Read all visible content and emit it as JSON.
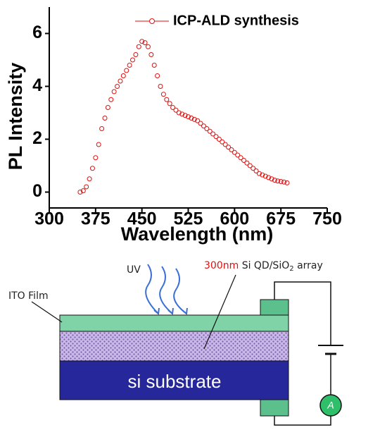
{
  "chart_data": {
    "type": "scatter",
    "x_label": "Wavelength (nm)",
    "y_label": "PL Intensity",
    "x": [
      350,
      355,
      360,
      365,
      370,
      375,
      380,
      385,
      390,
      395,
      400,
      405,
      410,
      415,
      420,
      425,
      430,
      435,
      440,
      445,
      450,
      455,
      460,
      465,
      470,
      475,
      480,
      485,
      490,
      495,
      500,
      505,
      510,
      515,
      520,
      525,
      530,
      535,
      540,
      545,
      550,
      555,
      560,
      565,
      570,
      575,
      580,
      585,
      590,
      595,
      600,
      605,
      610,
      615,
      620,
      625,
      630,
      635,
      640,
      645,
      650,
      655,
      660,
      665,
      670,
      675,
      680,
      685
    ],
    "series": [
      {
        "name": "ICP-ALD synthesis",
        "color": "#dd1111",
        "values": [
          0.0,
          0.05,
          0.2,
          0.5,
          0.9,
          1.3,
          1.8,
          2.4,
          2.8,
          3.2,
          3.5,
          3.8,
          4.0,
          4.2,
          4.4,
          4.6,
          4.8,
          5.0,
          5.2,
          5.5,
          5.7,
          5.65,
          5.5,
          5.2,
          4.8,
          4.4,
          4.0,
          3.7,
          3.5,
          3.35,
          3.2,
          3.1,
          3.0,
          2.95,
          2.9,
          2.85,
          2.8,
          2.75,
          2.7,
          2.6,
          2.5,
          2.4,
          2.3,
          2.2,
          2.1,
          2.0,
          1.9,
          1.8,
          1.7,
          1.6,
          1.5,
          1.4,
          1.3,
          1.2,
          1.1,
          1.0,
          0.9,
          0.8,
          0.7,
          0.65,
          0.6,
          0.55,
          0.5,
          0.45,
          0.42,
          0.4,
          0.38,
          0.35
        ]
      }
    ],
    "xlim": [
      300,
      750
    ],
    "xticks": [
      300,
      375,
      450,
      525,
      600,
      675,
      750
    ],
    "ylim": [
      -0.6,
      7
    ],
    "yticks": [
      0,
      2,
      4,
      6
    ],
    "legend": "top-right"
  },
  "diagram": {
    "uv": "UV",
    "layer_size": "300nm",
    "array_name": "Si QD/SiO",
    "array_sub": "2",
    "array_tail": "array",
    "ito": "ITO Film",
    "substrate": "si substrate",
    "meter": "A"
  }
}
